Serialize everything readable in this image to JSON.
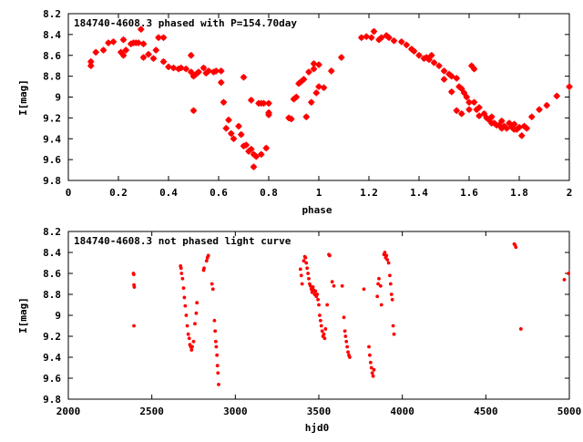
{
  "chart_data": [
    {
      "type": "scatter",
      "title": "184740-4608.3 phased with P=154.70day",
      "xlabel": "phase",
      "ylabel": "I[mag]",
      "xlim": [
        0,
        2
      ],
      "ylim": [
        8.2,
        9.8
      ],
      "y_inverted": true,
      "grid": false,
      "marker_color": "#ff0000",
      "x_ticks": [
        0,
        0.2,
        0.4,
        0.6,
        0.8,
        1,
        1.2,
        1.4,
        1.6,
        1.8,
        2
      ],
      "x_tick_labels": [
        "0",
        "0.2",
        "0.4",
        "0.6",
        "0.8",
        "1",
        "1.2",
        "1.4",
        "1.6",
        "1.8",
        "2"
      ],
      "y_ticks": [
        8.2,
        8.4,
        8.6,
        8.8,
        9,
        9.2,
        9.4,
        9.6,
        9.8
      ],
      "y_tick_labels": [
        "8.2",
        "8.4",
        "8.6",
        "8.8",
        "9",
        "9.2",
        "9.4",
        "9.6",
        "9.8"
      ],
      "points": [
        [
          0.09,
          8.7
        ],
        [
          0.09,
          8.66
        ],
        [
          0.11,
          8.57
        ],
        [
          0.14,
          8.55
        ],
        [
          0.16,
          8.48
        ],
        [
          0.18,
          8.47
        ],
        [
          0.21,
          8.57
        ],
        [
          0.22,
          8.6
        ],
        [
          0.22,
          8.45
        ],
        [
          0.23,
          8.55
        ],
        [
          0.25,
          8.49
        ],
        [
          0.26,
          8.48
        ],
        [
          0.27,
          8.48
        ],
        [
          0.28,
          8.48
        ],
        [
          0.29,
          8.35
        ],
        [
          0.3,
          8.49
        ],
        [
          0.3,
          8.62
        ],
        [
          0.32,
          8.59
        ],
        [
          0.34,
          8.63
        ],
        [
          0.35,
          8.55
        ],
        [
          0.36,
          8.43
        ],
        [
          0.38,
          8.66
        ],
        [
          0.38,
          8.43
        ],
        [
          0.4,
          8.71
        ],
        [
          0.42,
          8.72
        ],
        [
          0.44,
          8.73
        ],
        [
          0.45,
          8.72
        ],
        [
          0.47,
          8.73
        ],
        [
          0.49,
          8.76
        ],
        [
          0.49,
          8.6
        ],
        [
          0.5,
          8.8
        ],
        [
          0.5,
          9.13
        ],
        [
          0.51,
          8.78
        ],
        [
          0.52,
          8.76
        ],
        [
          0.54,
          8.72
        ],
        [
          0.55,
          8.77
        ],
        [
          0.56,
          8.75
        ],
        [
          0.58,
          8.76
        ],
        [
          0.59,
          8.75
        ],
        [
          0.61,
          8.75
        ],
        [
          0.61,
          8.86
        ],
        [
          0.62,
          9.05
        ],
        [
          0.63,
          9.3
        ],
        [
          0.64,
          9.22
        ],
        [
          0.65,
          9.35
        ],
        [
          0.66,
          9.4
        ],
        [
          0.68,
          9.28
        ],
        [
          0.69,
          9.36
        ],
        [
          0.7,
          9.47
        ],
        [
          0.7,
          8.81
        ],
        [
          0.71,
          9.46
        ],
        [
          0.72,
          9.52
        ],
        [
          0.73,
          9.5
        ],
        [
          0.74,
          9.55
        ],
        [
          0.74,
          9.67
        ],
        [
          0.75,
          9.57
        ],
        [
          0.76,
          9.06
        ],
        [
          0.77,
          9.55
        ],
        [
          0.77,
          9.06
        ],
        [
          0.78,
          9.06
        ],
        [
          0.79,
          9.49
        ],
        [
          0.8,
          9.15
        ],
        [
          0.8,
          9.06
        ],
        [
          0.8,
          9.17
        ],
        [
          0.73,
          9.03
        ],
        [
          0.88,
          9.2
        ],
        [
          0.89,
          9.21
        ],
        [
          0.9,
          9.02
        ],
        [
          0.91,
          9.0
        ],
        [
          0.92,
          8.87
        ],
        [
          0.93,
          8.85
        ],
        [
          0.94,
          8.83
        ],
        [
          0.95,
          9.19
        ],
        [
          0.96,
          8.76
        ],
        [
          0.97,
          9.05
        ],
        [
          0.98,
          8.73
        ],
        [
          0.98,
          8.68
        ],
        [
          0.99,
          8.96
        ],
        [
          1.0,
          8.9
        ],
        [
          1.0,
          8.69
        ],
        [
          1.02,
          8.91
        ],
        [
          1.05,
          8.75
        ],
        [
          1.09,
          8.62
        ],
        [
          1.17,
          8.43
        ],
        [
          1.19,
          8.42
        ],
        [
          1.21,
          8.43
        ],
        [
          1.22,
          8.37
        ],
        [
          1.24,
          8.45
        ],
        [
          1.25,
          8.43
        ],
        [
          1.27,
          8.41
        ],
        [
          1.28,
          8.43
        ],
        [
          1.3,
          8.46
        ],
        [
          1.33,
          8.47
        ],
        [
          1.35,
          8.5
        ],
        [
          1.37,
          8.54
        ],
        [
          1.38,
          8.56
        ],
        [
          1.4,
          8.6
        ],
        [
          1.42,
          8.63
        ],
        [
          1.43,
          8.62
        ],
        [
          1.44,
          8.64
        ],
        [
          1.46,
          8.67
        ],
        [
          1.48,
          8.7
        ],
        [
          1.5,
          8.75
        ],
        [
          1.52,
          8.78
        ],
        [
          1.53,
          8.8
        ],
        [
          1.55,
          8.82
        ],
        [
          1.56,
          8.9
        ],
        [
          1.57,
          8.92
        ],
        [
          1.58,
          8.96
        ],
        [
          1.59,
          9.0
        ],
        [
          1.6,
          9.05
        ],
        [
          1.61,
          8.7
        ],
        [
          1.62,
          8.73
        ],
        [
          1.63,
          9.12
        ],
        [
          1.64,
          9.18
        ],
        [
          1.66,
          9.16
        ],
        [
          1.67,
          9.2
        ],
        [
          1.68,
          9.22
        ],
        [
          1.69,
          9.25
        ],
        [
          1.7,
          9.25
        ],
        [
          1.71,
          9.27
        ],
        [
          1.72,
          9.27
        ],
        [
          1.73,
          9.3
        ],
        [
          1.74,
          9.28
        ],
        [
          1.75,
          9.3
        ],
        [
          1.76,
          9.25
        ],
        [
          1.77,
          9.29
        ],
        [
          1.78,
          9.31
        ],
        [
          1.79,
          9.31
        ],
        [
          1.8,
          9.29
        ],
        [
          1.82,
          9.28
        ],
        [
          1.85,
          9.19
        ],
        [
          1.88,
          9.12
        ],
        [
          1.91,
          9.08
        ],
        [
          1.95,
          8.99
        ],
        [
          2.0,
          8.9
        ],
        [
          1.53,
          8.95
        ],
        [
          1.55,
          9.13
        ],
        [
          1.57,
          9.16
        ],
        [
          1.6,
          9.12
        ],
        [
          1.64,
          9.1
        ],
        [
          1.69,
          9.19
        ],
        [
          1.73,
          9.23
        ],
        [
          1.78,
          9.26
        ],
        [
          1.81,
          9.37
        ],
        [
          1.83,
          9.3
        ],
        [
          1.45,
          8.6
        ],
        [
          1.5,
          8.83
        ],
        [
          1.62,
          9.05
        ]
      ]
    },
    {
      "type": "scatter",
      "title": "184740-4608.3 not phased light curve",
      "xlabel": "hjd0",
      "ylabel": "I[mag]",
      "xlim": [
        2000,
        5000
      ],
      "ylim": [
        8.2,
        9.8
      ],
      "y_inverted": true,
      "grid": false,
      "marker_color": "#ff0000",
      "x_ticks": [
        2000,
        2500,
        3000,
        3500,
        4000,
        4500,
        5000
      ],
      "x_tick_labels": [
        "2000",
        "2500",
        "3000",
        "3500",
        "4000",
        "4500",
        "5000"
      ],
      "y_ticks": [
        8.2,
        8.4,
        8.6,
        8.8,
        9,
        9.2,
        9.4,
        9.6,
        9.8
      ],
      "y_tick_labels": [
        "8.2",
        "8.4",
        "8.6",
        "8.8",
        "9",
        "9.2",
        "9.4",
        "9.6",
        "9.8"
      ],
      "points": [
        [
          2390,
          8.6
        ],
        [
          2392,
          8.61
        ],
        [
          2393,
          8.71
        ],
        [
          2395,
          8.73
        ],
        [
          2393,
          9.1
        ],
        [
          2672,
          8.53
        ],
        [
          2675,
          8.55
        ],
        [
          2678,
          8.6
        ],
        [
          2684,
          8.65
        ],
        [
          2690,
          8.74
        ],
        [
          2695,
          8.83
        ],
        [
          2700,
          8.91
        ],
        [
          2706,
          9.0
        ],
        [
          2712,
          9.1
        ],
        [
          2718,
          9.18
        ],
        [
          2724,
          9.22
        ],
        [
          2728,
          9.28
        ],
        [
          2733,
          9.3
        ],
        [
          2738,
          9.33
        ],
        [
          2742,
          9.3
        ],
        [
          2750,
          9.25
        ],
        [
          2758,
          9.08
        ],
        [
          2766,
          8.98
        ],
        [
          2770,
          8.88
        ],
        [
          2810,
          8.57
        ],
        [
          2813,
          8.55
        ],
        [
          2828,
          8.48
        ],
        [
          2833,
          8.45
        ],
        [
          2838,
          8.43
        ],
        [
          2860,
          8.7
        ],
        [
          2866,
          8.75
        ],
        [
          2875,
          9.05
        ],
        [
          2879,
          9.15
        ],
        [
          2883,
          9.25
        ],
        [
          2886,
          9.3
        ],
        [
          2890,
          9.38
        ],
        [
          2893,
          9.48
        ],
        [
          2896,
          9.55
        ],
        [
          2900,
          9.66
        ],
        [
          3390,
          8.56
        ],
        [
          3395,
          8.62
        ],
        [
          3400,
          8.7
        ],
        [
          3410,
          8.48
        ],
        [
          3416,
          8.44
        ],
        [
          3420,
          8.45
        ],
        [
          3425,
          8.5
        ],
        [
          3430,
          8.55
        ],
        [
          3435,
          8.6
        ],
        [
          3440,
          8.65
        ],
        [
          3445,
          8.7
        ],
        [
          3450,
          8.72
        ],
        [
          3455,
          8.75
        ],
        [
          3460,
          8.78
        ],
        [
          3465,
          8.73
        ],
        [
          3470,
          8.76
        ],
        [
          3475,
          8.8
        ],
        [
          3480,
          8.77
        ],
        [
          3485,
          8.82
        ],
        [
          3490,
          8.8
        ],
        [
          3495,
          8.85
        ],
        [
          3500,
          8.9
        ],
        [
          3505,
          9.0
        ],
        [
          3510,
          9.05
        ],
        [
          3515,
          9.1
        ],
        [
          3520,
          9.15
        ],
        [
          3525,
          9.2
        ],
        [
          3530,
          9.18
        ],
        [
          3535,
          9.22
        ],
        [
          3540,
          9.13
        ],
        [
          3550,
          8.9
        ],
        [
          3560,
          8.42
        ],
        [
          3565,
          8.43
        ],
        [
          3580,
          8.68
        ],
        [
          3590,
          8.72
        ],
        [
          3640,
          8.72
        ],
        [
          3650,
          9.02
        ],
        [
          3656,
          9.15
        ],
        [
          3660,
          9.2
        ],
        [
          3665,
          9.25
        ],
        [
          3670,
          9.3
        ],
        [
          3675,
          9.35
        ],
        [
          3680,
          9.38
        ],
        [
          3685,
          9.4
        ],
        [
          3770,
          8.75
        ],
        [
          3800,
          9.3
        ],
        [
          3805,
          9.38
        ],
        [
          3810,
          9.45
        ],
        [
          3815,
          9.5
        ],
        [
          3820,
          9.55
        ],
        [
          3825,
          9.58
        ],
        [
          3830,
          9.52
        ],
        [
          3850,
          8.82
        ],
        [
          3855,
          8.7
        ],
        [
          3860,
          8.65
        ],
        [
          3870,
          8.72
        ],
        [
          3875,
          8.9
        ],
        [
          3890,
          8.42
        ],
        [
          3895,
          8.4
        ],
        [
          3900,
          8.45
        ],
        [
          3905,
          8.43
        ],
        [
          3910,
          8.47
        ],
        [
          3918,
          8.5
        ],
        [
          3925,
          8.62
        ],
        [
          3930,
          8.7
        ],
        [
          3935,
          8.8
        ],
        [
          3940,
          8.85
        ],
        [
          3945,
          9.1
        ],
        [
          3950,
          9.18
        ],
        [
          4670,
          8.32
        ],
        [
          4675,
          8.33
        ],
        [
          4680,
          8.35
        ],
        [
          4710,
          9.13
        ],
        [
          4970,
          8.66
        ],
        [
          4995,
          8.6
        ]
      ]
    }
  ]
}
